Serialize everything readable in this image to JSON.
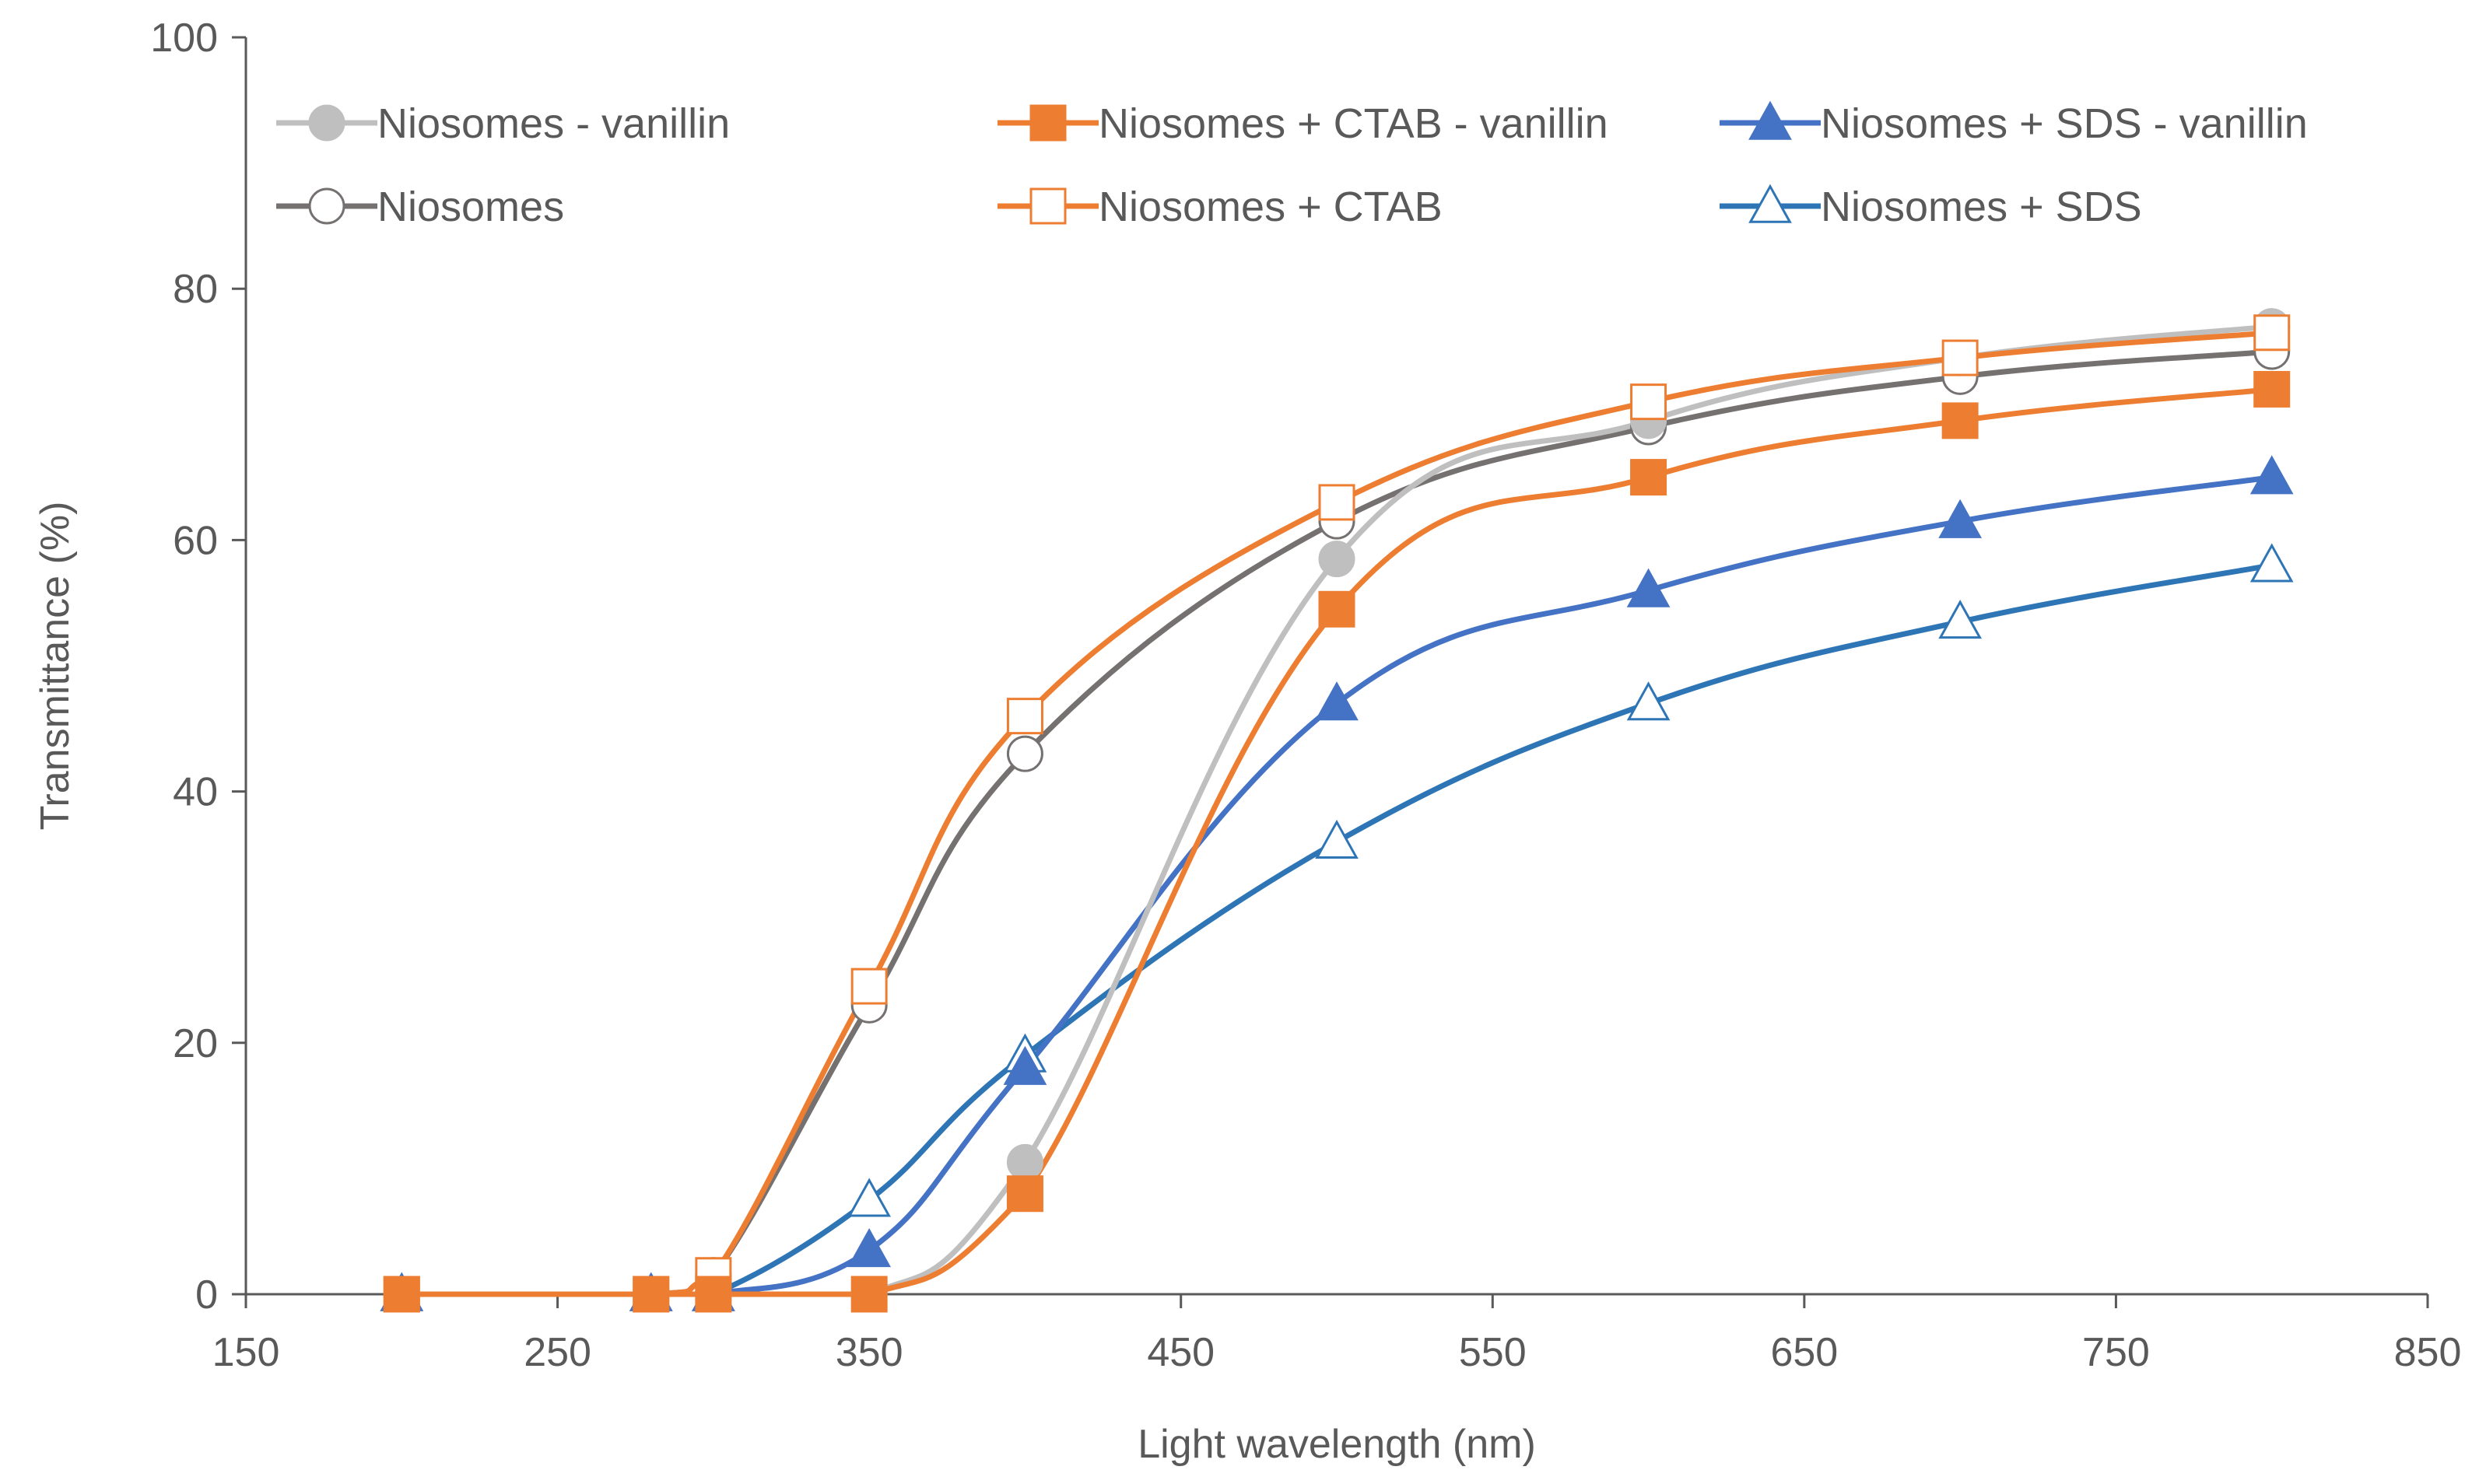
{
  "chart_data": {
    "type": "line",
    "title": "",
    "xlabel": "Light wavelength (nm)",
    "ylabel": "Transmittance (%)",
    "xlim": [
      150,
      850
    ],
    "ylim": [
      0,
      100
    ],
    "xticks": [
      150,
      250,
      350,
      450,
      550,
      650,
      750,
      850
    ],
    "yticks": [
      0,
      20,
      40,
      60,
      80,
      100
    ],
    "x_tick_labels": [
      "150",
      "250",
      "350",
      "450",
      "550",
      "650",
      "750",
      "850"
    ],
    "y_tick_labels": [
      "0",
      "20",
      "40",
      "60",
      "80",
      "100"
    ],
    "grid": false,
    "legend_position": "top",
    "series": [
      {
        "name": "Niosomes - vanillin",
        "color": "#bfbfbf",
        "marker": "circle",
        "filled": true,
        "x": [
          200,
          280,
          300,
          350,
          400,
          500,
          600,
          700,
          800
        ],
        "y": [
          0,
          0,
          0,
          0,
          10.5,
          58.5,
          69.5,
          74.5,
          77
        ]
      },
      {
        "name": "Niosomes + CTAB - vanillin",
        "color": "#ed7d31",
        "marker": "square",
        "filled": true,
        "x": [
          200,
          280,
          300,
          350,
          400,
          500,
          600,
          700,
          800
        ],
        "y": [
          0,
          0,
          0,
          0,
          8,
          54.5,
          65,
          69.5,
          72
        ]
      },
      {
        "name": "Niosomes + SDS - vanillin",
        "color": "#4472c4",
        "marker": "triangle",
        "filled": true,
        "x": [
          200,
          280,
          300,
          350,
          400,
          500,
          600,
          700,
          800
        ],
        "y": [
          0,
          0,
          0,
          3.5,
          18,
          47,
          56,
          61.5,
          65
        ]
      },
      {
        "name": "Niosomes",
        "color": "#767171",
        "marker": "circle",
        "filled": false,
        "x": [
          200,
          280,
          300,
          350,
          400,
          500,
          600,
          700,
          800
        ],
        "y": [
          0,
          0,
          1.5,
          23,
          43,
          61.5,
          69,
          73,
          75
        ]
      },
      {
        "name": "Niosomes + CTAB",
        "color": "#ed7d31",
        "marker": "square",
        "filled": false,
        "x": [
          200,
          280,
          300,
          350,
          400,
          500,
          600,
          700,
          800
        ],
        "y": [
          0,
          0,
          1.5,
          24.5,
          46,
          63,
          71,
          74.5,
          76.5
        ]
      },
      {
        "name": "Niosomes + SDS",
        "color": "#2e75b6",
        "marker": "triangle",
        "filled": false,
        "x": [
          200,
          280,
          300,
          350,
          400,
          500,
          600,
          700,
          800
        ],
        "y": [
          0,
          0,
          0,
          7.5,
          19,
          36,
          47,
          53.5,
          58
        ]
      }
    ]
  }
}
